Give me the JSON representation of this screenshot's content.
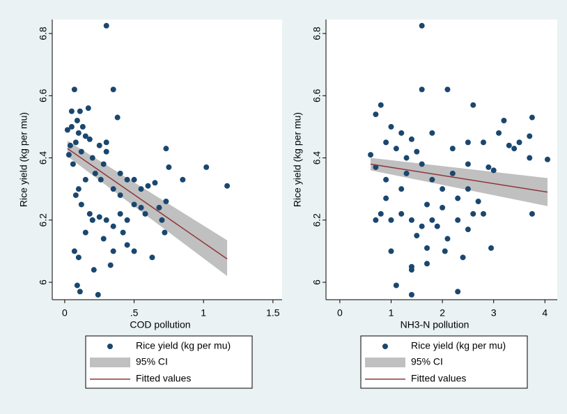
{
  "chart_data": [
    {
      "type": "scatter",
      "xlabel": "COD pollution",
      "ylabel": "Rice yield (kg per mu)",
      "xlim": [
        -0.09,
        1.566
      ],
      "ylim": [
        5.944,
        6.845
      ],
      "xticks": [
        0,
        {
          "value": 0.5,
          "label": ".5"
        },
        1,
        1.5
      ],
      "yticks": [
        6,
        6.2,
        6.4,
        6.6,
        6.8
      ],
      "series": [
        {
          "name": "Rice yield (kg per mu)",
          "color": "#1a476f",
          "x": [
            0.3,
            0.35,
            0.07,
            0.02,
            0.05,
            0.1,
            0.08,
            0.15,
            0.12,
            0.03,
            0.06,
            0.04,
            0.09,
            0.11,
            0.13,
            0.18,
            0.2,
            0.25,
            0.28,
            0.3,
            0.22,
            0.15,
            0.1,
            0.08,
            0.12,
            0.18,
            0.2,
            0.25,
            0.3,
            0.35,
            0.4,
            0.45,
            0.5,
            0.55,
            0.45,
            0.4,
            0.35,
            0.5,
            0.6,
            0.65,
            0.73,
            0.75,
            0.85,
            1.02,
            1.17,
            0.7,
            0.72,
            0.63,
            0.5,
            0.35,
            0.33,
            0.28,
            0.2,
            0.07,
            0.1,
            0.09,
            0.11,
            0.24,
            0.21,
            0.38,
            0.3,
            0.4,
            0.42,
            0.55,
            0.58,
            0.68,
            0.73,
            0.17,
            0.05,
            0.26,
            0.15,
            0.45
          ],
          "values": [
            6.825,
            6.62,
            6.62,
            6.49,
            6.5,
            6.48,
            6.45,
            6.47,
            6.42,
            6.41,
            6.38,
            6.44,
            6.52,
            6.55,
            6.5,
            6.46,
            6.4,
            6.44,
            6.38,
            6.42,
            6.35,
            6.33,
            6.3,
            6.28,
            6.25,
            6.22,
            6.2,
            6.21,
            6.2,
            6.18,
            6.22,
            6.2,
            6.25,
            6.3,
            6.33,
            6.35,
            6.3,
            6.33,
            6.31,
            6.32,
            6.43,
            6.37,
            6.33,
            6.37,
            6.31,
            6.2,
            6.16,
            6.08,
            6.1,
            6.1,
            6.055,
            6.14,
            6.2,
            6.1,
            6.08,
            5.99,
            5.97,
            5.96,
            6.04,
            6.53,
            6.45,
            6.28,
            6.16,
            6.24,
            6.22,
            6.24,
            6.26,
            6.56,
            6.55,
            6.33,
            6.16,
            6.12
          ]
        },
        {
          "name": "95% CI",
          "color": "#c0c0c0",
          "x": [
            0.02,
            1.17
          ],
          "lower": [
            6.405,
            6.02
          ],
          "upper": [
            6.455,
            6.135
          ]
        },
        {
          "name": "Fitted values",
          "color": "#90353b",
          "x": [
            0.02,
            1.17
          ],
          "values": [
            6.43,
            6.075
          ]
        }
      ]
    },
    {
      "type": "scatter",
      "xlabel": "NH3-N pollution",
      "ylabel": "Rice yield (kg per mu)",
      "xlim": [
        -0.27,
        4.24
      ],
      "ylim": [
        5.944,
        6.845
      ],
      "xticks": [
        0,
        1,
        2,
        3,
        4
      ],
      "yticks": [
        6,
        6.2,
        6.4,
        6.6,
        6.8
      ],
      "series": [
        {
          "name": "Rice yield (kg per mu)",
          "color": "#1a476f",
          "x": [
            1.6,
            1.6,
            2.1,
            0.7,
            0.8,
            1.0,
            1.2,
            0.9,
            1.4,
            1.1,
            1.5,
            0.6,
            0.7,
            0.9,
            1.2,
            1.3,
            1.6,
            1.8,
            2.0,
            2.2,
            2.5,
            2.6,
            2.8,
            3.1,
            3.2,
            3.4,
            3.5,
            3.7,
            3.75,
            4.05,
            3.7,
            3.75,
            3.0,
            2.9,
            2.5,
            2.3,
            2.0,
            1.8,
            1.6,
            1.4,
            1.2,
            1.0,
            0.8,
            1.5,
            1.7,
            1.9,
            2.1,
            2.3,
            2.5,
            2.6,
            2.8,
            2.95,
            2.4,
            2.05,
            1.7,
            1.4,
            1.4,
            1.0,
            1.1,
            1.4,
            2.3,
            0.7,
            1.8,
            1.3,
            2.2,
            2.7,
            3.3,
            0.9,
            2.5,
            1.7
          ],
          "values": [
            6.825,
            6.62,
            6.62,
            6.54,
            6.57,
            6.5,
            6.48,
            6.45,
            6.46,
            6.43,
            6.42,
            6.41,
            6.37,
            6.33,
            6.3,
            6.35,
            6.38,
            6.33,
            6.3,
            6.43,
            6.45,
            6.57,
            6.45,
            6.48,
            6.52,
            6.43,
            6.45,
            6.47,
            6.53,
            6.395,
            6.4,
            6.22,
            6.36,
            6.37,
            6.3,
            6.27,
            6.24,
            6.2,
            6.18,
            6.2,
            6.22,
            6.2,
            6.22,
            6.15,
            6.11,
            6.18,
            6.14,
            6.2,
            6.17,
            6.22,
            6.22,
            6.11,
            6.08,
            6.1,
            6.06,
            6.05,
            6.04,
            6.1,
            5.99,
            5.96,
            5.97,
            6.2,
            6.48,
            6.4,
            6.35,
            6.26,
            6.44,
            6.27,
            6.38,
            6.25
          ]
        },
        {
          "name": "95% CI",
          "color": "#c0c0c0",
          "x": [
            0.6,
            4.05
          ],
          "lower": [
            6.36,
            6.245
          ],
          "upper": [
            6.4,
            6.335
          ]
        },
        {
          "name": "Fitted values",
          "color": "#90353b",
          "x": [
            0.6,
            4.05
          ],
          "values": [
            6.38,
            6.29
          ]
        }
      ]
    }
  ]
}
